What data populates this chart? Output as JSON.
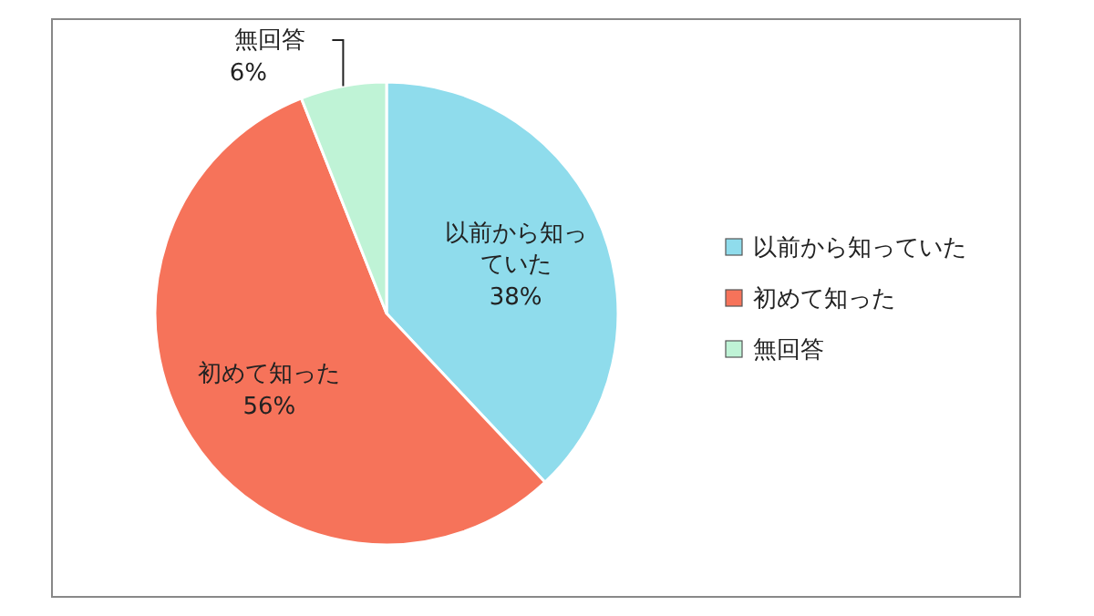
{
  "chart_data": {
    "type": "pie",
    "categories": [
      "以前から知っていた",
      "初めて知った",
      "無回答"
    ],
    "values": [
      38,
      56,
      6
    ],
    "colors": [
      "#8fdcec",
      "#f6735a",
      "#bff3d6"
    ],
    "value_labels": [
      "38%",
      "56%",
      "6%"
    ],
    "legend": "right"
  }
}
